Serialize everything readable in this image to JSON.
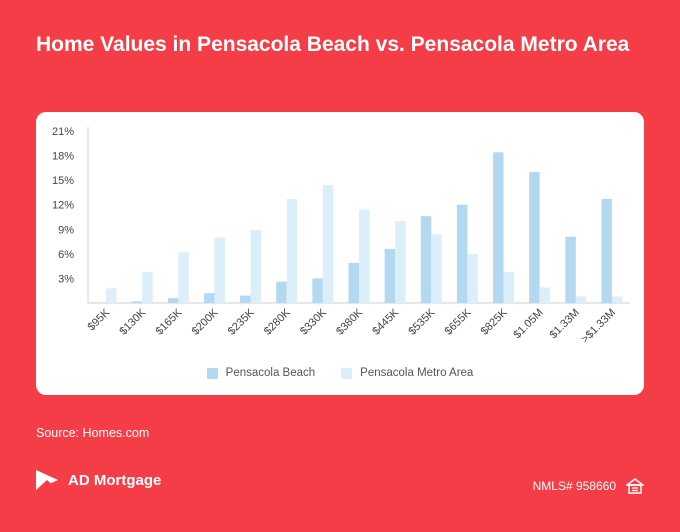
{
  "header": {
    "title": "Home Values in Pensacola Beach vs. Pensacola Metro Area"
  },
  "colors": {
    "background": "#F53D47",
    "beach": "#B3D9F2",
    "metro": "#DDEEFB",
    "text": "#555555"
  },
  "chart_data": {
    "type": "bar",
    "categories": [
      "$95K",
      "$130K",
      "$165K",
      "$200K",
      "$235K",
      "$280K",
      "$330K",
      "$380K",
      "$445K",
      "$535K",
      "$655K",
      "$825K",
      "$1.05M",
      "$1.33M",
      ">$1.33M"
    ],
    "series": [
      {
        "name": "Pensacola Beach",
        "values": [
          0,
          0.2,
          0.6,
          1.2,
          0.9,
          2.6,
          3.0,
          4.9,
          6.6,
          10.6,
          12.0,
          18.4,
          16.0,
          8.1,
          12.7
        ]
      },
      {
        "name": "Pensacola Metro Area",
        "values": [
          1.8,
          3.8,
          6.2,
          8.0,
          8.9,
          12.7,
          14.4,
          11.4,
          10.0,
          8.4,
          6.0,
          3.8,
          1.9,
          0.8,
          0.8
        ]
      }
    ],
    "yticks": [
      "21%",
      "18%",
      "15%",
      "12%",
      "9%",
      "6%",
      "3%"
    ],
    "ylim": [
      0,
      21
    ],
    "legend_position": "bottom",
    "grid": false
  },
  "footer": {
    "source": "Source: Homes.com",
    "brand": "AD Mortgage",
    "nmls": "NMLS# 958660",
    "logo_icon": "ad-mortgage-logo-icon",
    "housing_icon": "equal-housing-icon"
  }
}
